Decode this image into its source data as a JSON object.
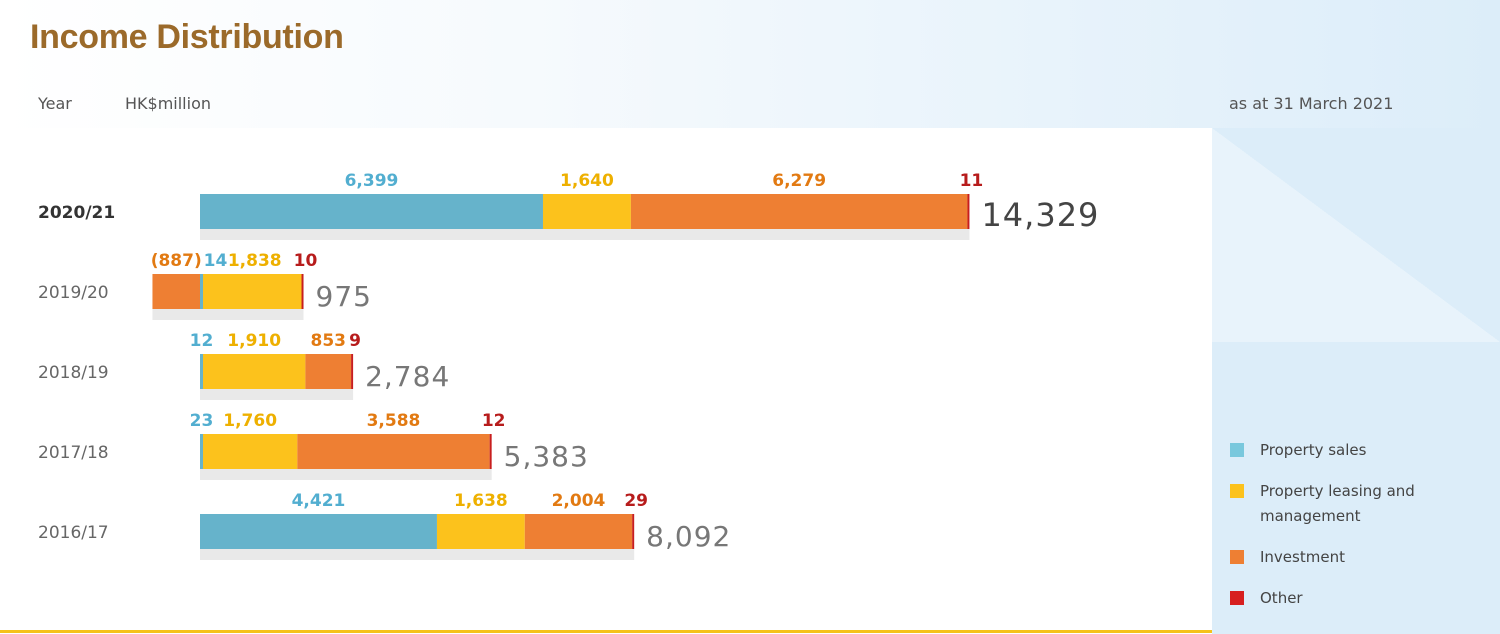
{
  "header": {
    "title": "Income Distribution",
    "year_label": "Year",
    "unit_label": "HK$million",
    "date_label": "as at 31 March 2021"
  },
  "colors": {
    "property_sales": "#66b3cb",
    "leasing": "#fcc21c",
    "investment": "#ee7f33",
    "other": "#c81e1e",
    "label_sales": "#52aed0",
    "label_leasing": "#eeb000",
    "label_investment": "#e27a12",
    "label_other": "#b71c1c"
  },
  "legend": [
    {
      "label": "Property sales",
      "color": "#79c8dd"
    },
    {
      "label": "Property leasing and management",
      "color": "#fcc21c"
    },
    {
      "label": "Investment",
      "color": "#ee7f33"
    },
    {
      "label": "Other",
      "color": "#d71f1f"
    }
  ],
  "chart_data": {
    "type": "bar",
    "orientation": "horizontal",
    "stacked": true,
    "unit": "HK$million",
    "categories": [
      "2020/21",
      "2019/20",
      "2018/19",
      "2017/18",
      "2016/17"
    ],
    "series": [
      {
        "name": "Property sales",
        "values": [
          6399,
          14,
          12,
          23,
          4421
        ],
        "labels": [
          "6,399",
          "14",
          "12",
          "23",
          "4,421"
        ]
      },
      {
        "name": "Property leasing and management",
        "values": [
          1640,
          1838,
          1910,
          1760,
          1638
        ],
        "labels": [
          "1,640",
          "1,838",
          "1,910",
          "1,760",
          "1,638"
        ]
      },
      {
        "name": "Investment",
        "values": [
          6279,
          -887,
          853,
          3588,
          2004
        ],
        "labels": [
          "6,279",
          "(887)",
          "853",
          "3,588",
          "2,004"
        ]
      },
      {
        "name": "Other",
        "values": [
          11,
          10,
          9,
          12,
          29
        ],
        "labels": [
          "11",
          "10",
          "9",
          "12",
          "29"
        ]
      }
    ],
    "totals": [
      14329,
      975,
      2784,
      5383,
      8092
    ],
    "total_labels": [
      "14,329",
      "975",
      "2,784",
      "5,383",
      "8,092"
    ],
    "highlighted_category": "2020/21"
  }
}
